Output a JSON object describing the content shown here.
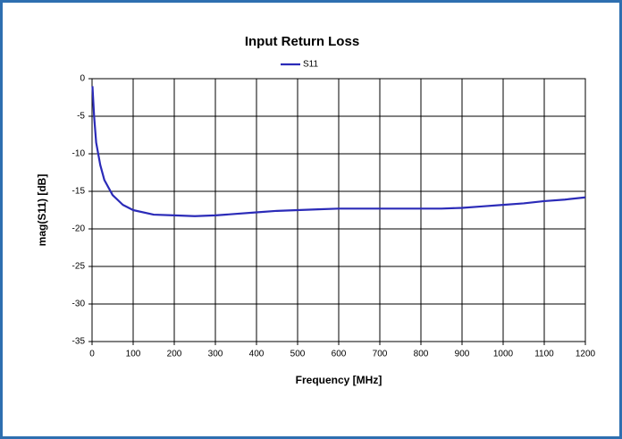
{
  "chart_data": {
    "type": "line",
    "title": "Input Return Loss",
    "x_label": "Frequency [MHz]",
    "y_label": "mag(S11) [dB]",
    "x": [
      1,
      5,
      10,
      20,
      30,
      50,
      75,
      100,
      150,
      200,
      250,
      300,
      350,
      400,
      450,
      500,
      550,
      600,
      700,
      800,
      850,
      900,
      950,
      1000,
      1050,
      1100,
      1150,
      1200
    ],
    "series": [
      {
        "name": "S11",
        "color": "#2b2bb8",
        "values": [
          -1,
          -5,
          -8.5,
          -11.5,
          -13.5,
          -15.5,
          -16.8,
          -17.5,
          -18.1,
          -18.2,
          -18.3,
          -18.2,
          -18.0,
          -17.8,
          -17.6,
          -17.5,
          -17.4,
          -17.3,
          -17.3,
          -17.3,
          -17.3,
          -17.2,
          -17.0,
          -16.8,
          -16.6,
          -16.3,
          -16.1,
          -15.8
        ]
      }
    ],
    "xlim": [
      0,
      1200
    ],
    "xticks": [
      0,
      100,
      200,
      300,
      400,
      500,
      600,
      700,
      800,
      900,
      1000,
      1100,
      1200
    ],
    "ylim": [
      -35,
      0
    ],
    "yticks": [
      0,
      -5,
      -10,
      -15,
      -20,
      -25,
      -30,
      -35
    ],
    "grid": true,
    "legend": "top"
  }
}
